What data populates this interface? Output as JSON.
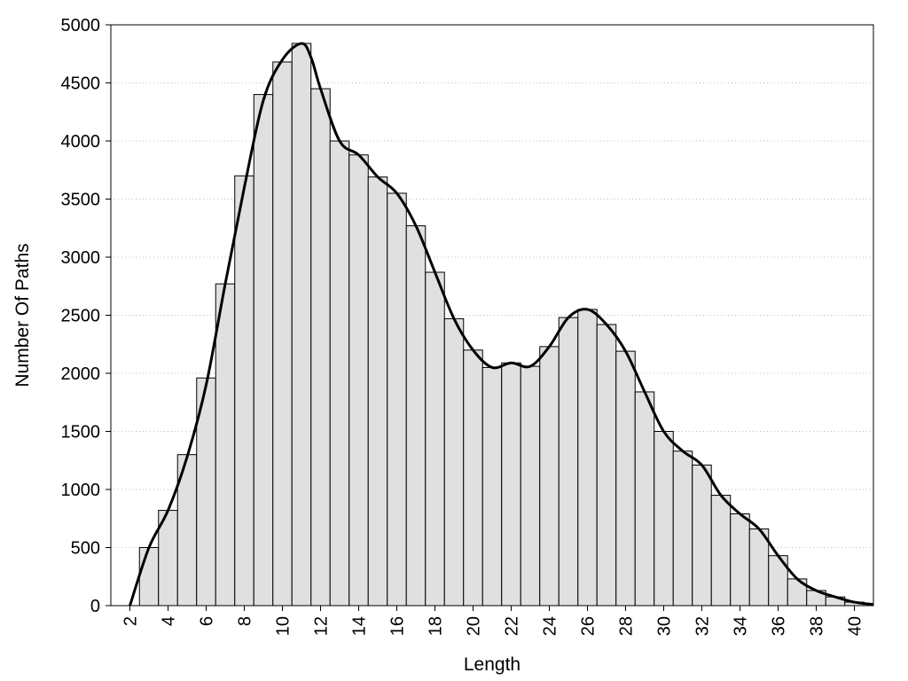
{
  "chart_data": {
    "type": "bar",
    "xlabel": "Length",
    "ylabel": "Number Of Paths",
    "xlim": [
      1,
      41
    ],
    "ylim": [
      0,
      5000
    ],
    "grid": "horizontal-dotted",
    "x": [
      3,
      4,
      5,
      6,
      7,
      8,
      9,
      10,
      11,
      12,
      13,
      14,
      15,
      16,
      17,
      18,
      19,
      20,
      21,
      22,
      23,
      24,
      25,
      26,
      27,
      28,
      29,
      30,
      31,
      32,
      33,
      34,
      35,
      36,
      37,
      38,
      39,
      40
    ],
    "values": [
      500,
      820,
      1300,
      1960,
      2770,
      3700,
      4400,
      4680,
      4840,
      4450,
      4000,
      3880,
      3690,
      3550,
      3270,
      2870,
      2470,
      2200,
      2050,
      2090,
      2060,
      2230,
      2480,
      2550,
      2420,
      2190,
      1840,
      1500,
      1330,
      1210,
      950,
      790,
      660,
      430,
      230,
      130,
      75,
      30
    ],
    "curve": {
      "x": [
        2,
        3,
        4,
        5,
        6,
        7,
        8,
        9,
        10,
        11,
        11.5,
        12,
        13,
        14,
        15,
        16,
        17,
        18,
        19,
        20,
        21,
        22,
        23,
        24,
        25,
        26,
        27,
        28,
        29,
        30,
        31,
        32,
        33,
        34,
        35,
        36,
        37,
        38,
        39,
        40,
        41
      ],
      "y": [
        0,
        500,
        820,
        1280,
        1900,
        2770,
        3600,
        4350,
        4700,
        4840,
        4720,
        4450,
        4000,
        3880,
        3690,
        3550,
        3270,
        2870,
        2470,
        2200,
        2050,
        2090,
        2060,
        2230,
        2480,
        2550,
        2420,
        2190,
        1840,
        1500,
        1330,
        1210,
        950,
        790,
        660,
        430,
        230,
        130,
        75,
        30,
        10
      ]
    },
    "x_ticks": [
      2,
      4,
      6,
      8,
      10,
      12,
      14,
      16,
      18,
      20,
      22,
      24,
      26,
      28,
      30,
      32,
      34,
      36,
      38,
      40
    ],
    "y_ticks": [
      0,
      500,
      1000,
      1500,
      2000,
      2500,
      3000,
      3500,
      4000,
      4500,
      5000
    ],
    "colors": {
      "bar_fill": "#e0e0e0",
      "bar_stroke": "#000000",
      "curve": "#000000",
      "grid": "#bbbbbb"
    }
  }
}
